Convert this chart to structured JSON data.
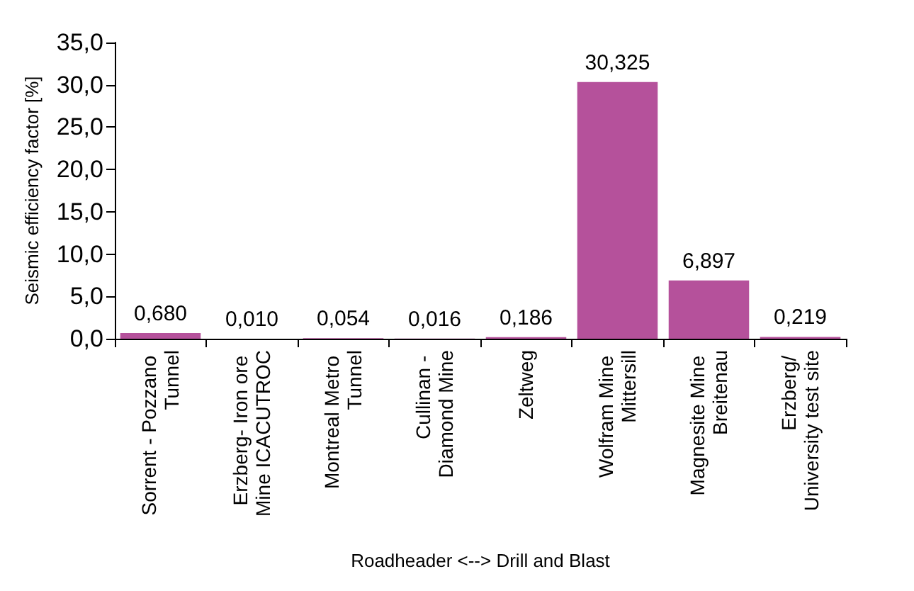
{
  "chart_data": {
    "type": "bar",
    "xlabel": "Roadheader <--> Drill and Blast",
    "ylabel": "Seismic efficiency factor [%]",
    "categories": [
      "Sorrent - Pozzano Tunnel",
      "Erzberg- Iron ore Mine ICACUTROC",
      "Montreal Metro Tunnel",
      "Cullinan - Diamond Mine",
      "Zeltweg",
      "Wolfram Mine Mittersill",
      "Magnesite Mine Breitenau",
      "Erzberg/ University test site"
    ],
    "values": [
      0.68,
      0.01,
      0.054,
      0.016,
      0.186,
      30.325,
      6.897,
      0.219
    ],
    "value_labels": [
      "0,680",
      "0,010",
      "0,054",
      "0,016",
      "0,186",
      "30,325",
      "6,897",
      "0,219"
    ],
    "color": "#b5519b",
    "ylim": [
      0,
      35
    ],
    "yticks": [
      {
        "value": 0,
        "label": "0,0"
      },
      {
        "value": 5,
        "label": "5,0"
      },
      {
        "value": 10,
        "label": "10,0"
      },
      {
        "value": 15,
        "label": "15,0"
      },
      {
        "value": 20,
        "label": "20,0"
      },
      {
        "value": 25,
        "label": "25,0"
      },
      {
        "value": 30,
        "label": "30,0"
      },
      {
        "value": 35,
        "label": "35,0"
      }
    ],
    "grid": false
  }
}
